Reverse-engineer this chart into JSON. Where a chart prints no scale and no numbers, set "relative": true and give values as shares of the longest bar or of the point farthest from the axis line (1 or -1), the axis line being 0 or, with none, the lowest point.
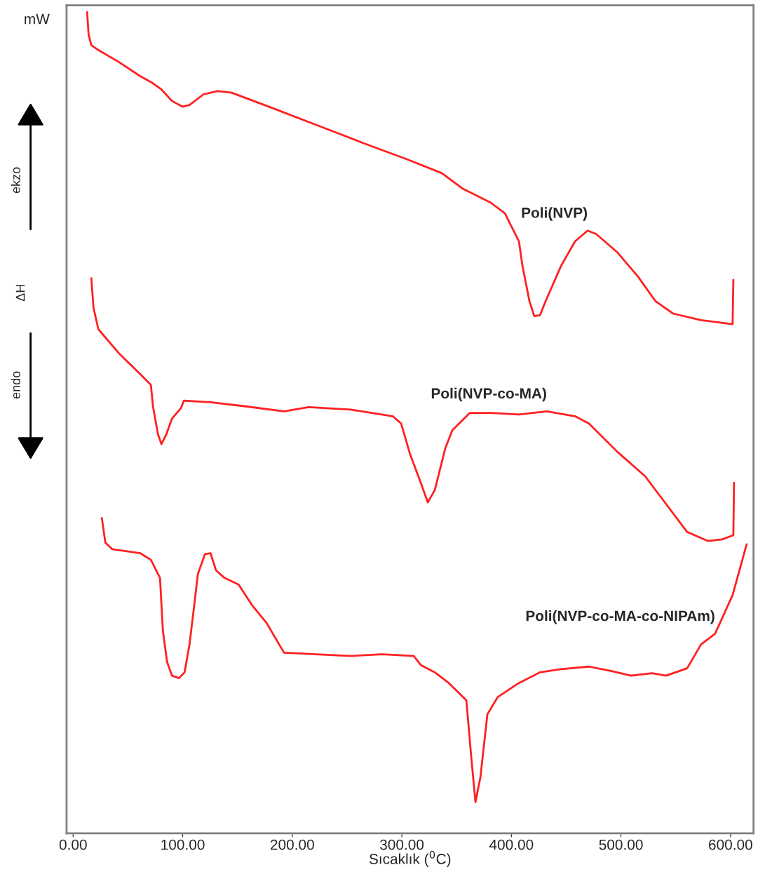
{
  "chart_data": {
    "type": "line",
    "relative": true,
    "xlabel": "Sıcaklık ($^{0}$C)",
    "ylabel": "ΔH",
    "annotations": [
      "mW",
      "ekzo",
      "endo"
    ],
    "xlim": [
      -6,
      621
    ],
    "xticks": [
      {
        "value": 0,
        "label": "0.00"
      },
      {
        "value": 100,
        "label": "100.00"
      },
      {
        "value": 200,
        "label": "200.00"
      },
      {
        "value": 300,
        "label": "300.00"
      },
      {
        "value": 400,
        "label": "400.00"
      },
      {
        "value": 500,
        "label": "500.00"
      },
      {
        "value": 600,
        "label": "600.00"
      }
    ],
    "grid": false,
    "legend": false,
    "tick_labels": "x",
    "series": [
      {
        "name": "Poli(NVP)",
        "color": "#ff2020",
        "x": [
          12.8,
          14.1,
          16.6,
          23.0,
          42.2,
          61.4,
          71.0,
          80.6,
          90.2,
          99.8,
          106.2,
          119.0,
          131.8,
          144.6,
          176.6,
          221.4,
          266.2,
          304.6,
          336.6,
          355.7,
          381.3,
          394.1,
          406.9,
          410.1,
          416.5,
          420.9,
          426.1,
          431.2,
          445.3,
          458.1,
          469.6,
          477.3,
          496.4,
          515.6,
          531.6,
          547.6,
          573.2,
          601.9,
          602.6
        ],
        "values": [
          1.0,
          0.973,
          0.96,
          0.954,
          0.939,
          0.922,
          0.915,
          0.906,
          0.892,
          0.885,
          0.887,
          0.9,
          0.904,
          0.902,
          0.886,
          0.863,
          0.84,
          0.821,
          0.804,
          0.785,
          0.768,
          0.755,
          0.721,
          0.691,
          0.648,
          0.63,
          0.631,
          0.648,
          0.691,
          0.721,
          0.734,
          0.73,
          0.708,
          0.678,
          0.648,
          0.633,
          0.625,
          0.62,
          0.674
        ]
      },
      {
        "name": "Poli(NVP-co-MA)",
        "color": "#ff2020",
        "x": [
          16.6,
          18.6,
          23.0,
          42.2,
          61.4,
          71.0,
          72.9,
          77.4,
          80.6,
          85.1,
          90.2,
          98.5,
          101.1,
          125.4,
          157.4,
          192.5,
          214.9,
          253.3,
          291.7,
          299.4,
          307.7,
          317.3,
          323.7,
          330.1,
          339.7,
          346.1,
          362.1,
          381.3,
          406.8,
          432.4,
          458.0,
          470.8,
          496.4,
          522.0,
          541.2,
          560.4,
          579.5,
          592.3,
          602.6,
          603.2
        ],
        "values": [
          0.676,
          0.64,
          0.614,
          0.584,
          0.559,
          0.546,
          0.52,
          0.486,
          0.474,
          0.486,
          0.505,
          0.518,
          0.527,
          0.525,
          0.52,
          0.514,
          0.519,
          0.516,
          0.508,
          0.499,
          0.461,
          0.427,
          0.403,
          0.418,
          0.469,
          0.491,
          0.512,
          0.512,
          0.51,
          0.514,
          0.508,
          0.499,
          0.465,
          0.435,
          0.401,
          0.367,
          0.356,
          0.358,
          0.363,
          0.427
        ]
      },
      {
        "name": "Poli(NVP-co-MA-co-NIPAm)",
        "color": "#ff2020",
        "x": [
          26.2,
          29.4,
          35.8,
          61.4,
          71.0,
          79.3,
          81.9,
          85.7,
          90.2,
          96.6,
          101.7,
          106.2,
          109.4,
          113.9,
          120.3,
          125.4,
          130.5,
          138.2,
          151.0,
          163.8,
          176.6,
          192.5,
          221.3,
          253.3,
          282.1,
          310.9,
          317.3,
          330.1,
          342.9,
          358.9,
          363.3,
          367.2,
          371.7,
          378.1,
          387.6,
          406.8,
          426.0,
          445.2,
          470.8,
          490.0,
          509.2,
          528.4,
          541.2,
          560.4,
          573.1,
          585.9,
          601.9,
          614.7
        ],
        "values": [
          0.384,
          0.354,
          0.346,
          0.341,
          0.333,
          0.311,
          0.247,
          0.209,
          0.192,
          0.189,
          0.196,
          0.23,
          0.265,
          0.316,
          0.34,
          0.341,
          0.32,
          0.311,
          0.303,
          0.277,
          0.256,
          0.22,
          0.218,
          0.216,
          0.218,
          0.216,
          0.205,
          0.196,
          0.183,
          0.162,
          0.094,
          0.038,
          0.068,
          0.145,
          0.166,
          0.183,
          0.196,
          0.2,
          0.203,
          0.198,
          0.192,
          0.195,
          0.192,
          0.201,
          0.23,
          0.243,
          0.29,
          0.352
        ]
      }
    ]
  }
}
